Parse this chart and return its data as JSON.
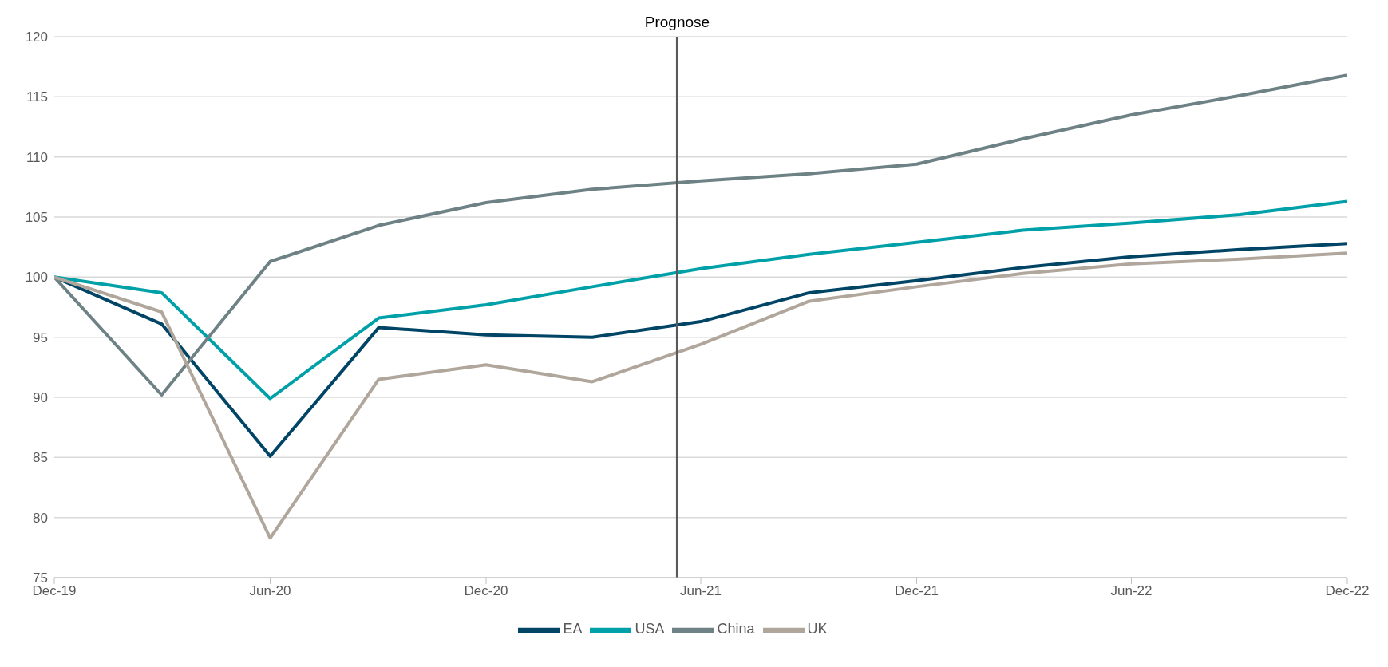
{
  "chart_data": {
    "type": "line",
    "x": [
      "2019-12",
      "2020-03",
      "2020-06",
      "2020-09",
      "2020-12",
      "2021-03",
      "2021-06",
      "2021-09",
      "2021-12",
      "2022-03",
      "2022-06",
      "2022-09",
      "2022-12"
    ],
    "series": [
      {
        "name": "EA",
        "color": "#004466",
        "values": [
          100,
          96.1,
          85.1,
          95.8,
          95.2,
          95.0,
          96.3,
          98.7,
          99.7,
          100.8,
          101.7,
          102.3,
          102.8
        ]
      },
      {
        "name": "USA",
        "color": "#00a0a8",
        "values": [
          100,
          98.7,
          89.9,
          96.6,
          97.7,
          99.2,
          100.7,
          101.9,
          102.9,
          103.9,
          104.5,
          105.2,
          106.3
        ]
      },
      {
        "name": "China",
        "color": "#6e8286",
        "values": [
          100,
          90.2,
          101.3,
          104.3,
          106.2,
          107.3,
          108.0,
          108.6,
          109.4,
          111.5,
          113.5,
          115.1,
          116.8
        ]
      },
      {
        "name": "UK",
        "color": "#b0a69c",
        "values": [
          100,
          97.1,
          78.3,
          91.5,
          92.7,
          91.3,
          94.4,
          98.0,
          99.2,
          100.3,
          101.1,
          101.5,
          102.0
        ]
      }
    ],
    "xlim": [
      "2019-12",
      "2022-12"
    ],
    "xticks": [
      {
        "value": "2019-12",
        "label": "Dec-19"
      },
      {
        "value": "2020-06",
        "label": "Jun-20"
      },
      {
        "value": "2020-12",
        "label": "Dec-20"
      },
      {
        "value": "2021-06",
        "label": "Jun-21"
      },
      {
        "value": "2021-12",
        "label": "Dec-21"
      },
      {
        "value": "2022-06",
        "label": "Jun-22"
      },
      {
        "value": "2022-12",
        "label": "Dec-22"
      }
    ],
    "ylim": [
      75,
      120
    ],
    "yticks": [
      75,
      80,
      85,
      90,
      95,
      100,
      105,
      110,
      115,
      120
    ],
    "ref_lines": [
      {
        "axis": "x",
        "value": "2021-05-12",
        "label": "Prognose",
        "color": "#595959"
      }
    ],
    "grid": "y",
    "legend": "bottom",
    "marker": "none",
    "line_style": "solid"
  }
}
